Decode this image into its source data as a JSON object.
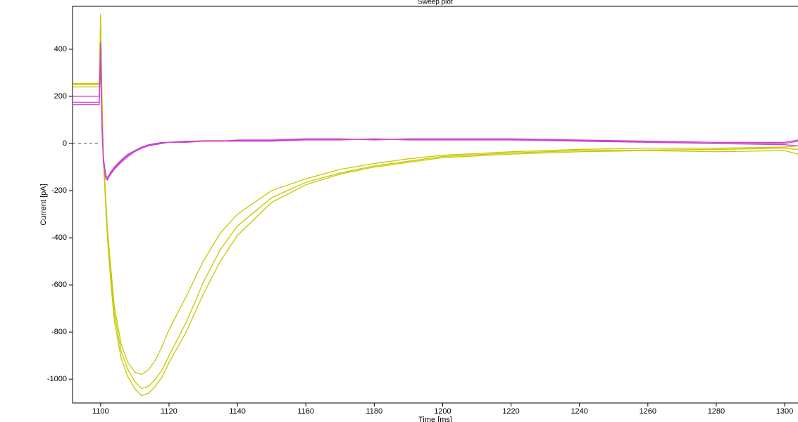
{
  "chart_data": {
    "type": "line",
    "title": "Sweep plot",
    "x_label": "Time [ms]",
    "y_label": "Current [pA]",
    "xlim": [
      1091.8,
      1303.9
    ],
    "ylim": [
      -1101,
      582
    ],
    "xticks": [
      1100,
      1120,
      1140,
      1160,
      1180,
      1200,
      1220,
      1240,
      1260,
      1280,
      1300
    ],
    "yticks": [
      -1000,
      -800,
      -600,
      -400,
      -200,
      0,
      200,
      400
    ],
    "reference_line": 0,
    "x": [
      1092,
      1099.6,
      1100,
      1100.4,
      1100.8,
      1101.5,
      1102,
      1103,
      1104,
      1106,
      1108,
      1110,
      1112,
      1114,
      1116,
      1118,
      1120,
      1125,
      1130,
      1135,
      1140,
      1150,
      1160,
      1170,
      1180,
      1190,
      1200,
      1220,
      1240,
      1260,
      1280,
      1300,
      1303.9
    ],
    "series": [
      {
        "color": "#c8c800",
        "values": [
          250,
          250,
          550,
          200,
          -50,
          -250,
          -380,
          -560,
          -720,
          -880,
          -960,
          -1010,
          -1040,
          -1030,
          -1000,
          -960,
          -900,
          -760,
          -590,
          -450,
          -350,
          -230,
          -165,
          -125,
          -95,
          -75,
          -55,
          -40,
          -30,
          -28,
          -25,
          -20,
          -25
        ]
      },
      {
        "color": "#c8c800",
        "values": [
          240,
          240,
          520,
          180,
          -60,
          -270,
          -400,
          -590,
          -750,
          -910,
          -990,
          -1040,
          -1070,
          -1060,
          -1030,
          -990,
          -930,
          -800,
          -640,
          -500,
          -390,
          -250,
          -175,
          -130,
          -100,
          -80,
          -60,
          -45,
          -35,
          -30,
          -35,
          -30,
          -45
        ]
      },
      {
        "color": "#c8c800",
        "values": [
          255,
          255,
          480,
          170,
          -40,
          -230,
          -360,
          -530,
          -690,
          -850,
          -930,
          -970,
          -980,
          -960,
          -920,
          -860,
          -790,
          -650,
          -500,
          -380,
          -300,
          -200,
          -150,
          -110,
          -85,
          -65,
          -50,
          -35,
          -25,
          -20,
          -20,
          -15,
          -10
        ]
      },
      {
        "color": "#cc44cc",
        "values": [
          200,
          200,
          430,
          100,
          -60,
          -130,
          -150,
          -130,
          -110,
          -80,
          -55,
          -35,
          -20,
          -10,
          -5,
          0,
          5,
          5,
          10,
          10,
          10,
          10,
          15,
          15,
          20,
          15,
          15,
          15,
          10,
          5,
          0,
          0,
          10
        ]
      },
      {
        "color": "#cc44cc",
        "values": [
          175,
          175,
          380,
          80,
          -70,
          -140,
          -145,
          -120,
          -100,
          -70,
          -45,
          -30,
          -15,
          -5,
          0,
          5,
          5,
          10,
          10,
          10,
          15,
          15,
          20,
          20,
          15,
          20,
          20,
          20,
          15,
          10,
          5,
          5,
          15
        ]
      },
      {
        "color": "#cc44cc",
        "values": [
          165,
          165,
          350,
          60,
          -80,
          -150,
          -155,
          -125,
          -105,
          -75,
          -50,
          -30,
          -18,
          -8,
          -3,
          2,
          5,
          8,
          12,
          12,
          12,
          12,
          18,
          18,
          18,
          18,
          18,
          18,
          12,
          8,
          0,
          -5,
          -10
        ]
      }
    ]
  }
}
